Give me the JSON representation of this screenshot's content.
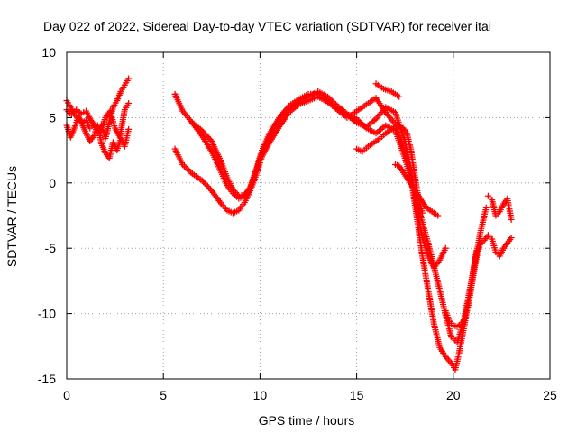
{
  "chart_data": {
    "type": "scatter",
    "title": "Day 022 of 2022, Sidereal Day-to-day VTEC variation (SDTVAR) for receiver itai",
    "xlabel": "GPS time / hours",
    "ylabel": "SDTVAR / TECUs",
    "xlim": [
      0,
      25
    ],
    "ylim": [
      -15,
      10
    ],
    "xticks": [
      "0",
      "5",
      "10",
      "15",
      "20",
      "25"
    ],
    "yticks": [
      "-15",
      "-10",
      "-5",
      "0",
      "5",
      "10"
    ],
    "grid": true,
    "marker": "+",
    "series_color": "#ff0000",
    "series": [
      {
        "x": [
          0.0,
          0.2,
          0.4,
          0.6,
          0.8,
          1.0,
          1.2,
          1.4,
          1.6,
          1.8,
          2.0,
          2.2,
          2.4,
          2.6,
          2.8,
          3.0,
          3.2
        ],
        "y": [
          6.3,
          5.8,
          5.2,
          5.0,
          4.6,
          4.8,
          4.2,
          4.5,
          3.8,
          4.4,
          3.4,
          4.6,
          5.8,
          6.3,
          7.0,
          7.5,
          8.0
        ]
      },
      {
        "x": [
          0.0,
          0.2,
          0.4,
          0.6,
          0.8,
          1.0,
          1.2,
          1.4,
          1.6,
          1.8,
          2.0,
          2.2,
          2.4,
          2.6,
          2.8,
          3.0,
          3.2
        ],
        "y": [
          4.4,
          3.5,
          4.2,
          5.1,
          4.5,
          3.8,
          3.2,
          3.6,
          4.4,
          3.0,
          2.3,
          1.9,
          3.1,
          2.5,
          3.4,
          2.8,
          4.1
        ]
      },
      {
        "x": [
          0.0,
          0.25,
          0.5,
          0.75,
          1.0,
          1.25,
          1.5,
          1.75,
          2.0,
          2.25,
          2.5,
          2.75,
          3.0,
          3.2
        ],
        "y": [
          5.6,
          5.2,
          5.6,
          5.3,
          5.5,
          4.8,
          4.3,
          3.9,
          5.0,
          5.5,
          4.2,
          3.5,
          5.6,
          6.1
        ]
      },
      {
        "x": [
          5.6,
          6.0,
          6.5,
          7.0,
          7.5,
          8.0,
          8.3,
          8.6,
          8.9,
          9.2,
          9.5,
          9.8,
          10.1,
          10.5,
          11.0,
          11.5,
          12.0,
          12.5,
          13.0,
          13.5,
          14.0,
          14.5,
          15.0,
          15.5,
          16.0,
          16.5,
          17.0,
          17.5,
          17.8,
          18.1,
          18.4,
          18.7,
          19.0,
          19.3,
          19.6,
          19.9,
          20.2,
          20.5,
          20.8,
          21.1,
          21.4,
          21.7
        ],
        "y": [
          6.8,
          5.5,
          4.6,
          4.0,
          3.2,
          1.6,
          0.4,
          -0.5,
          -1.0,
          -0.9,
          -0.4,
          0.9,
          2.3,
          3.6,
          4.9,
          5.8,
          6.2,
          6.6,
          7.0,
          6.6,
          5.9,
          5.3,
          4.9,
          4.2,
          3.8,
          4.4,
          4.0,
          1.9,
          0.3,
          -1.4,
          -3.0,
          -4.6,
          -6.4,
          -8.2,
          -10.1,
          -11.8,
          -12.2,
          -10.8,
          -8.6,
          -6.2,
          -3.8,
          -1.9
        ]
      },
      {
        "x": [
          5.6,
          6.0,
          6.5,
          7.0,
          7.5,
          8.0,
          8.3,
          8.6,
          8.9,
          9.2,
          9.5,
          9.8,
          10.1,
          10.5,
          11.0,
          11.5,
          12.0,
          12.5,
          13.0,
          13.5,
          14.0,
          14.5,
          15.0,
          15.5,
          16.0,
          16.5,
          17.0,
          17.5,
          17.8,
          18.1,
          18.4,
          18.7,
          19.0,
          19.3,
          19.6,
          19.9,
          20.1,
          20.3,
          20.6,
          20.9,
          21.2
        ],
        "y": [
          2.6,
          1.4,
          0.7,
          0.2,
          -0.6,
          -1.6,
          -2.1,
          -2.3,
          -2.1,
          -1.5,
          -0.6,
          0.6,
          2.0,
          3.1,
          4.3,
          5.4,
          6.0,
          6.3,
          6.6,
          6.2,
          5.6,
          5.0,
          5.5,
          6.0,
          6.5,
          5.4,
          4.5,
          2.4,
          0.5,
          -2.5,
          -5.6,
          -8.2,
          -10.8,
          -12.6,
          -13.3,
          -13.8,
          -14.3,
          -13.0,
          -10.7,
          -8.0,
          -5.2
        ]
      },
      {
        "x": [
          6.5,
          7.0,
          7.5,
          8.0,
          8.3,
          8.6,
          8.9,
          9.2,
          9.5,
          9.8,
          10.1,
          10.5,
          11.0,
          11.5,
          12.0,
          12.5,
          13.0,
          13.5,
          14.0,
          14.5,
          15.0,
          15.5,
          16.0,
          16.5,
          17.0,
          17.5,
          17.8,
          18.1,
          18.4,
          18.7,
          19.0,
          19.3,
          19.6
        ],
        "y": [
          4.6,
          3.6,
          2.4,
          0.8,
          -0.2,
          -0.8,
          -1.2,
          -1.0,
          -0.3,
          1.0,
          2.5,
          3.8,
          5.0,
          5.9,
          6.4,
          6.8,
          6.8,
          6.3,
          5.7,
          5.2,
          4.6,
          4.3,
          4.9,
          5.8,
          5.4,
          3.2,
          0.9,
          -1.8,
          -4.2,
          -5.6,
          -6.5,
          -5.9,
          -5.0
        ]
      },
      {
        "x": [
          15.0,
          15.3,
          15.6,
          15.9,
          16.2,
          16.5,
          16.8,
          17.1,
          17.4,
          17.6,
          17.8,
          18.0,
          18.2,
          18.4
        ],
        "y": [
          2.6,
          2.4,
          2.8,
          3.1,
          3.4,
          3.8,
          4.1,
          4.4,
          4.2,
          3.8,
          2.6,
          0.6,
          -1.2,
          -2.3
        ]
      },
      {
        "x": [
          16.0,
          16.4,
          16.8,
          17.2
        ],
        "y": [
          7.6,
          7.2,
          7.0,
          6.6
        ]
      },
      {
        "x": [
          17.0,
          17.2,
          18.6,
          18.9,
          19.2
        ],
        "y": [
          1.4,
          1.3,
          -1.9,
          -2.2,
          -2.5
        ]
      },
      {
        "x": [
          19.6,
          19.8,
          20.0,
          20.2,
          20.4,
          20.6,
          20.8,
          21.0,
          21.2,
          21.4,
          21.6,
          21.8,
          22.0,
          22.2,
          22.4,
          22.6,
          22.8,
          23.0
        ],
        "y": [
          -9.8,
          -10.6,
          -10.9,
          -11.0,
          -10.8,
          -10.4,
          -9.2,
          -7.4,
          -5.7,
          -4.6,
          -4.4,
          -4.0,
          -4.3,
          -5.3,
          -5.6,
          -5.0,
          -4.6,
          -4.2
        ]
      },
      {
        "x": [
          21.8,
          22.0,
          22.2,
          22.4,
          22.6,
          22.8,
          23.0
        ],
        "y": [
          -1.0,
          -1.3,
          -2.5,
          -2.2,
          -1.6,
          -1.2,
          -2.8
        ]
      }
    ]
  }
}
